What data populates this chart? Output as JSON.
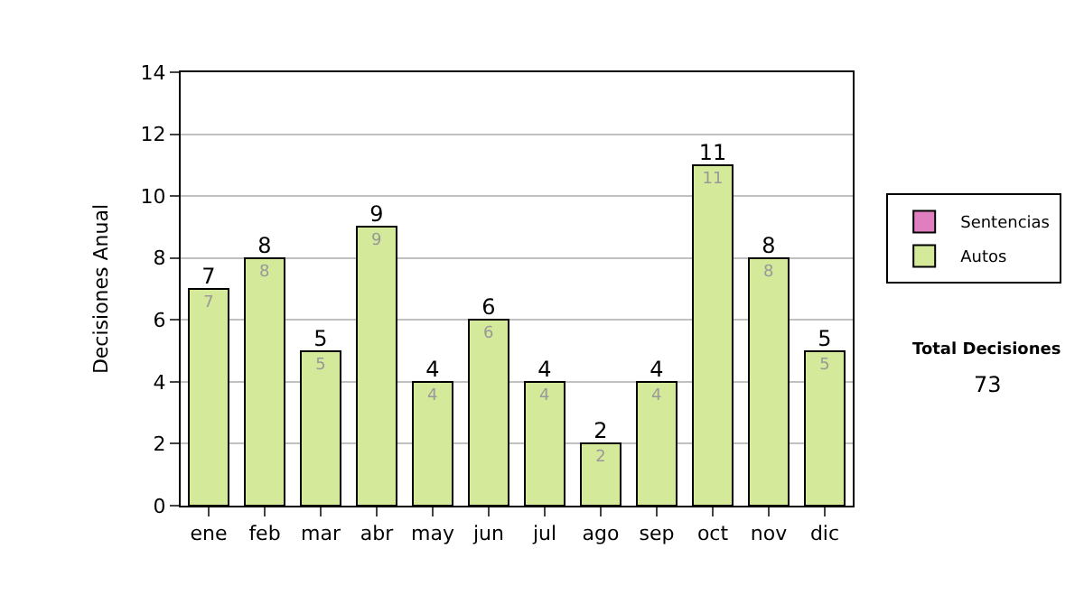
{
  "chart_data": {
    "type": "bar",
    "stacked": true,
    "ylabel": "Decisiones Anual",
    "categories": [
      "ene",
      "feb",
      "mar",
      "abr",
      "may",
      "jun",
      "jul",
      "ago",
      "sep",
      "oct",
      "nov",
      "dic"
    ],
    "series": [
      {
        "name": "Sentencias",
        "color": "#e07fc0",
        "values": [
          0,
          0,
          0,
          0,
          0,
          0,
          0,
          0,
          0,
          0,
          0,
          0
        ]
      },
      {
        "name": "Autos",
        "color": "#d4e99a",
        "values": [
          7,
          8,
          5,
          9,
          4,
          6,
          4,
          2,
          4,
          11,
          8,
          5
        ],
        "value_labels": [
          "7",
          "8",
          "5",
          "9",
          "4",
          "6",
          "4",
          "2",
          "4",
          "11",
          "8",
          "5"
        ]
      }
    ],
    "totals": [
      "7",
      "8",
      "5",
      "9",
      "4",
      "6",
      "4",
      "2",
      "4",
      "11",
      "8",
      "5"
    ],
    "ylim": [
      0,
      14
    ],
    "yticks": [
      0,
      2,
      4,
      6,
      8,
      10,
      12,
      14
    ],
    "grid": "y",
    "legend": "right",
    "annotations": [
      "Total Decisiones",
      "73"
    ]
  }
}
